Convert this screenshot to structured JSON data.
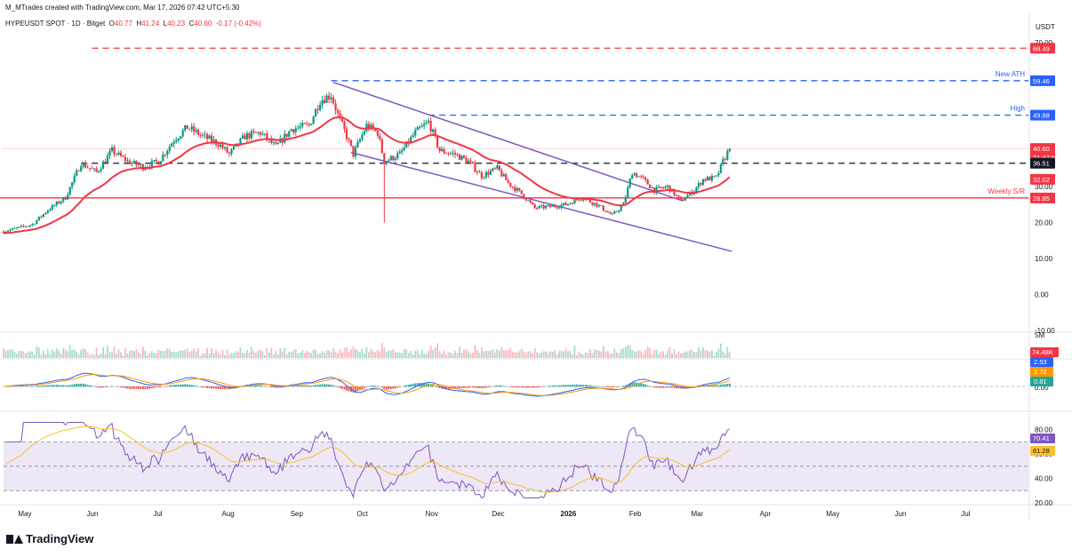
{
  "header": {
    "created_by": "M_MTrades created with TradingView.com, Mar 17, 2026 07:42 UTC+5:30",
    "symbol": "HYPEUSDT SPOT · 1D · Bitget",
    "o_label": "O",
    "o": "40.77",
    "h_label": "H",
    "h": "41.24",
    "l_label": "L",
    "l": "40.23",
    "c_label": "C",
    "c": "40.60",
    "change": "-0.17 (-0.42%)",
    "currency": "USDT"
  },
  "brand": {
    "name": "TradingView"
  },
  "colors": {
    "up": "#089981",
    "down": "#f23645",
    "ma": "#f23645",
    "channel": "#7e57c2",
    "red_dash": "#f23645",
    "blue_dash": "#2962ff",
    "macd": "#2962ff",
    "signal": "#ff9800",
    "rsi": "#7e57c2",
    "rsi_ma": "#fbc02d",
    "rsi_band": "#ede7f6"
  },
  "chart_data": [
    {
      "type": "candlestick",
      "x_range": [
        "2025-04-22",
        "2026-07-29"
      ],
      "ylim": [
        -10,
        73
      ],
      "y_ticks": [
        70,
        60,
        50,
        40,
        30,
        20,
        10,
        0,
        -10
      ],
      "y_tick_labels": [
        "70.00",
        "60.00",
        "50.00",
        "40.00",
        "30.00",
        "20.00",
        "10.00",
        "0.00",
        "-10.00"
      ],
      "x_ticks": [
        {
          "date": "2025-05-01",
          "label": "May"
        },
        {
          "date": "2025-06-01",
          "label": "Jun"
        },
        {
          "date": "2025-07-01",
          "label": "Jul"
        },
        {
          "date": "2025-08-01",
          "label": "Aug"
        },
        {
          "date": "2025-09-01",
          "label": "Sep"
        },
        {
          "date": "2025-10-01",
          "label": "Oct"
        },
        {
          "date": "2025-11-01",
          "label": "Nov"
        },
        {
          "date": "2025-12-01",
          "label": "Dec"
        },
        {
          "date": "2026-01-01",
          "label": "2026"
        },
        {
          "date": "2026-02-01",
          "label": "Feb"
        },
        {
          "date": "2026-03-01",
          "label": "Mar"
        },
        {
          "date": "2026-04-01",
          "label": "Apr"
        },
        {
          "date": "2026-05-01",
          "label": "May"
        },
        {
          "date": "2026-06-01",
          "label": "Jun"
        },
        {
          "date": "2026-07-01",
          "label": "Jul"
        }
      ],
      "close_anchors": [
        [
          "2025-04-22",
          17.5
        ],
        [
          "2025-05-05",
          19.5
        ],
        [
          "2025-05-12",
          23.5
        ],
        [
          "2025-05-20",
          27.0
        ],
        [
          "2025-05-27",
          36.5
        ],
        [
          "2025-06-03",
          34.0
        ],
        [
          "2025-06-10",
          40.0
        ],
        [
          "2025-06-17",
          37.0
        ],
        [
          "2025-06-24",
          35.5
        ],
        [
          "2025-07-01",
          37.0
        ],
        [
          "2025-07-08",
          43.0
        ],
        [
          "2025-07-14",
          46.5
        ],
        [
          "2025-07-21",
          44.0
        ],
        [
          "2025-07-28",
          42.0
        ],
        [
          "2025-08-02",
          39.0
        ],
        [
          "2025-08-09",
          44.0
        ],
        [
          "2025-08-16",
          45.0
        ],
        [
          "2025-08-23",
          41.0
        ],
        [
          "2025-08-30",
          46.0
        ],
        [
          "2025-09-07",
          47.0
        ],
        [
          "2025-09-12",
          54.0
        ],
        [
          "2025-09-17",
          55.5
        ],
        [
          "2025-09-20",
          50.0
        ],
        [
          "2025-09-24",
          44.0
        ],
        [
          "2025-09-27",
          39.0
        ],
        [
          "2025-10-03",
          47.0
        ],
        [
          "2025-10-08",
          45.0
        ],
        [
          "2025-10-11",
          37.0
        ],
        [
          "2025-10-18",
          39.0
        ],
        [
          "2025-10-25",
          45.0
        ],
        [
          "2025-10-31",
          48.0
        ],
        [
          "2025-11-05",
          40.0
        ],
        [
          "2025-11-12",
          39.0
        ],
        [
          "2025-11-18",
          37.0
        ],
        [
          "2025-11-24",
          33.0
        ],
        [
          "2025-12-01",
          35.0
        ],
        [
          "2025-12-06",
          31.0
        ],
        [
          "2025-12-12",
          28.0
        ],
        [
          "2025-12-18",
          24.0
        ],
        [
          "2025-12-25",
          24.5
        ],
        [
          "2026-01-01",
          25.0
        ],
        [
          "2026-01-08",
          27.0
        ],
        [
          "2026-01-15",
          25.0
        ],
        [
          "2026-01-22",
          22.0
        ],
        [
          "2026-01-27",
          25.0
        ],
        [
          "2026-01-31",
          34.0
        ],
        [
          "2026-02-05",
          32.0
        ],
        [
          "2026-02-10",
          29.0
        ],
        [
          "2026-02-16",
          30.0
        ],
        [
          "2026-02-22",
          26.0
        ],
        [
          "2026-02-28",
          29.0
        ],
        [
          "2026-03-04",
          32.0
        ],
        [
          "2026-03-10",
          32.5
        ],
        [
          "2026-03-13",
          37.0
        ],
        [
          "2026-03-16",
          40.6
        ]
      ],
      "special_wicks": [
        {
          "date": "2025-10-11",
          "low": 20.0
        }
      ],
      "ma": {
        "color": "#f23645",
        "last": 32.02
      },
      "horizontal_levels": [
        {
          "value": 68.49,
          "style": "dashed",
          "color": "#f23645",
          "label": ""
        },
        {
          "value": 59.46,
          "style": "dashed",
          "color": "#2962ff",
          "label": "New ATH"
        },
        {
          "value": 49.88,
          "style": "dashed",
          "color": "#2962ff",
          "label": "High"
        },
        {
          "value": 36.51,
          "style": "dashed",
          "color": "#131722",
          "label": ""
        },
        {
          "value": 26.85,
          "style": "solid",
          "color": "#f23645",
          "label": "Weekly S/R"
        }
      ],
      "channel": {
        "upper": [
          [
            "2025-09-18",
            59.0
          ],
          [
            "2026-02-23",
            26.0
          ]
        ],
        "lower": [
          [
            "2025-09-26",
            39.5
          ],
          [
            "2026-03-17",
            12.0
          ]
        ]
      },
      "price_tags": [
        {
          "text": "68.49",
          "value": 68.49,
          "color": "#f23645"
        },
        {
          "text": "59.46",
          "value": 59.46,
          "color": "#2962ff"
        },
        {
          "text": "49.88",
          "value": 49.88,
          "color": "#2962ff"
        },
        {
          "text": "40.60",
          "value": 40.6,
          "color": "#f23645"
        },
        {
          "text": "21:47:58",
          "value": 38.2,
          "color": "#f23645"
        },
        {
          "text": "36.51",
          "value": 36.51,
          "color": "#131722"
        },
        {
          "text": "32.02",
          "value": 32.02,
          "color": "#f23645"
        },
        {
          "text": "26.85",
          "value": 26.85,
          "color": "#f23645"
        }
      ]
    },
    {
      "type": "volume",
      "y_tick_labels": [
        "5M"
      ],
      "last_label": "74.48K"
    },
    {
      "type": "macd",
      "y_tick_labels": [
        "0.00"
      ],
      "macd_last": "2.53",
      "signal_last": "1.72",
      "hist_last": "0.81"
    },
    {
      "type": "rsi",
      "ylim": [
        20,
        90
      ],
      "y_ticks": [
        80,
        60,
        40,
        20
      ],
      "y_tick_labels": [
        "80.00",
        "60.00",
        "40.00",
        "20.00"
      ],
      "band": [
        30,
        70
      ],
      "rsi_last": "70.41",
      "rsi_ma_last": "61.28"
    }
  ]
}
